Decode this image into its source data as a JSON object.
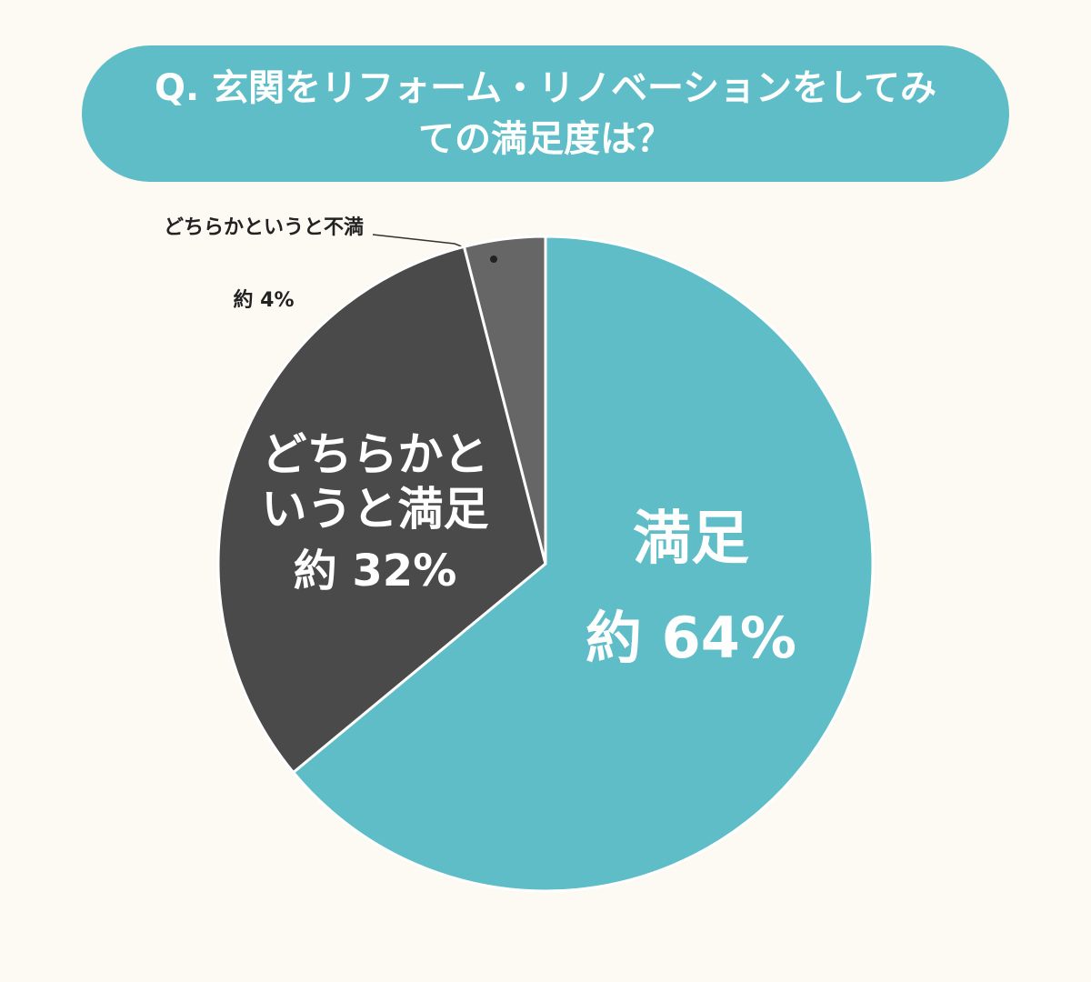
{
  "chart_data": {
    "type": "pie",
    "title": "Q. 玄関をリフォーム・リノベーションをしてみての満足度は？",
    "categories": [
      "満足",
      "どちらかというと満足",
      "どちらかというと不満"
    ],
    "values": [
      64,
      32,
      4
    ],
    "value_labels": [
      "約 64%",
      "約 32%",
      "約 4%"
    ],
    "colors": [
      "#5fbdc7",
      "#4a4a4a",
      "#666666"
    ]
  }
}
